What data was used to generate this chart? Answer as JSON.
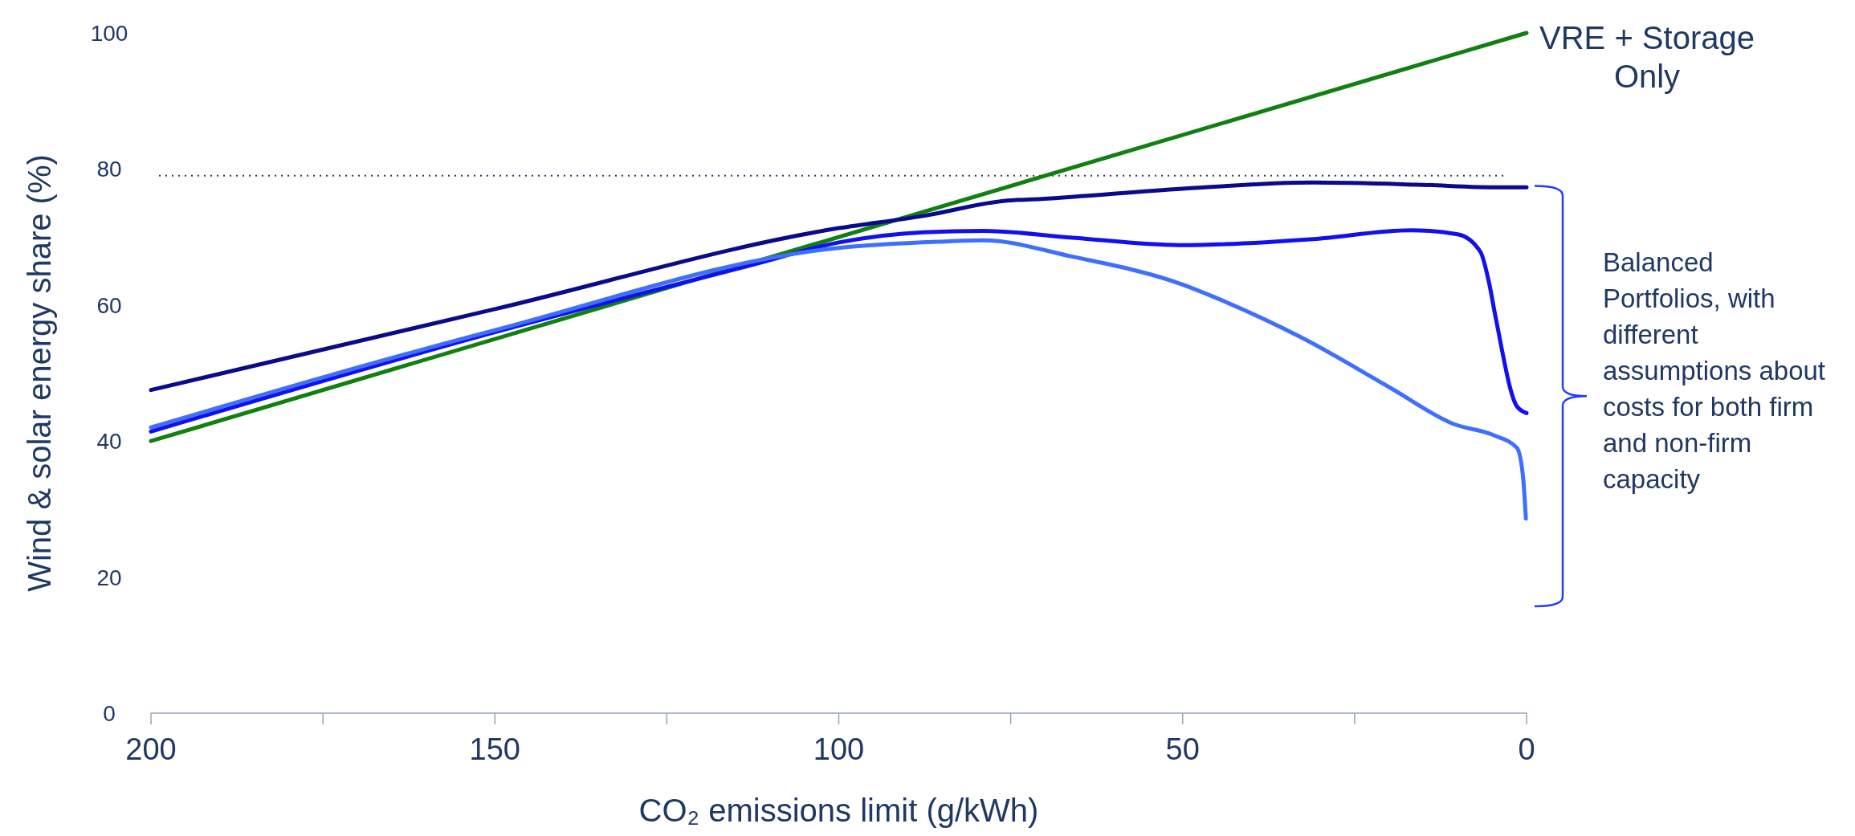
{
  "chart_data": {
    "type": "line",
    "xlabel": "CO₂ emissions limit (g/kWh)",
    "ylabel": "Wind & solar energy share (%)",
    "xlim": [
      200,
      0
    ],
    "xticks": [
      200,
      {
        "value": 175,
        "label": null
      },
      150,
      {
        "value": 125,
        "label": null
      },
      100,
      {
        "value": 75,
        "label": null
      },
      50,
      {
        "value": 25,
        "label": null
      },
      0
    ],
    "ylim": [
      0,
      100
    ],
    "yticks": [
      0,
      20,
      40,
      60,
      80,
      100
    ],
    "grid": false,
    "legend": false,
    "line_style": "solid",
    "marker": "none",
    "ref_lines": [
      {
        "axis": "y",
        "value": 79,
        "label": null,
        "color": "#1f3864",
        "line_style": "dotted"
      }
    ],
    "annotations": [
      "Balanced Portfolios, with different assumptions about costs for both firm and non-firm capacity"
    ],
    "series": [
      {
        "name": "VRE + Storage Only",
        "color": "#108010",
        "x": [
          200,
          0
        ],
        "values": [
          40,
          100
        ]
      },
      {
        "color": "#0a0a8c",
        "x": [
          200,
          150,
          100,
          87.7,
          76,
          70.5,
          50,
          31,
          16,
          4,
          0
        ],
        "values": [
          47.5,
          59.4,
          71.3,
          73.1,
          75.3,
          75.6,
          77.1,
          78.0,
          77.7,
          77.3,
          77.3
        ]
      },
      {
        "color": "#1010f0",
        "x": [
          200,
          150,
          112.6,
          100,
          87.7,
          79,
          66,
          50.5,
          31,
          16.8,
          10,
          6.7,
          5.5,
          4.5,
          1.4,
          0
        ],
        "values": [
          41.4,
          56.0,
          65.9,
          69.2,
          70.7,
          70.9,
          69.9,
          68.8,
          69.7,
          71.0,
          70.4,
          67.8,
          63.5,
          58.2,
          45.1,
          44.1
        ]
      },
      {
        "color": "#3f6fff",
        "x": [
          200,
          150,
          100,
          85.6,
          79,
          66,
          50,
          45.5,
          32.5,
          19.6,
          10.6,
          4.9,
          1.4,
          0.5,
          0.1
        ],
        "values": [
          42.0,
          56.3,
          68.4,
          69.3,
          69.5,
          67.1,
          63.0,
          61.2,
          55.1,
          47.7,
          42.5,
          40.9,
          39.0,
          34.6,
          28.6
        ]
      }
    ]
  }
}
